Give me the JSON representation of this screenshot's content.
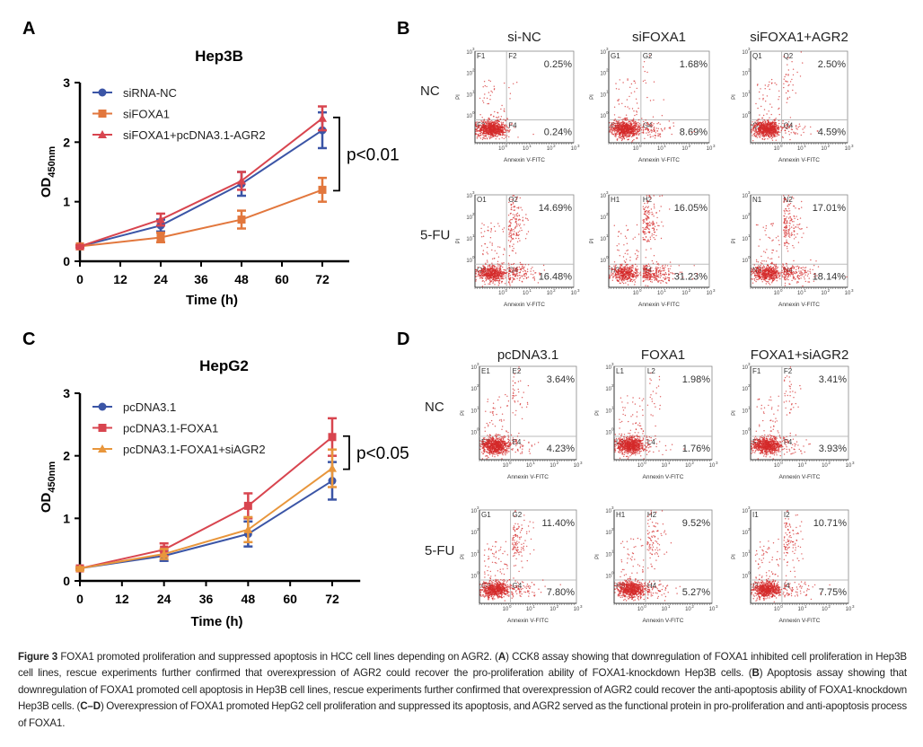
{
  "panel_labels": [
    "A",
    "B",
    "C",
    "D"
  ],
  "chart_data": [
    {
      "panel": "A",
      "type": "line",
      "title": "Hep3B",
      "xlabel": "Time (h)",
      "ylabel": {
        "main": "OD",
        "sub": "450nm"
      },
      "x": [
        0,
        24,
        48,
        72
      ],
      "xticks": [
        0,
        12,
        24,
        36,
        48,
        60,
        72
      ],
      "yticks": [
        0,
        1,
        2,
        3
      ],
      "xlim": [
        0,
        80
      ],
      "ylim": [
        0,
        3
      ],
      "grid": false,
      "legend": "top-left",
      "series": [
        {
          "name": "siRNA-NC",
          "marker": "circle",
          "color": "#3b55a6",
          "values": [
            0.25,
            0.6,
            1.3,
            2.2
          ],
          "error": [
            0.02,
            0.1,
            0.2,
            0.3
          ]
        },
        {
          "name": "siFOXA1",
          "marker": "square",
          "color": "#e2773d",
          "values": [
            0.25,
            0.4,
            0.7,
            1.2
          ],
          "error": [
            0.02,
            0.08,
            0.15,
            0.2
          ]
        },
        {
          "name": "siFOXA1+pcDNA3.1-AGR2",
          "marker": "triangle",
          "color": "#d8454f",
          "values": [
            0.25,
            0.7,
            1.35,
            2.4
          ],
          "error": [
            0.02,
            0.1,
            0.15,
            0.2
          ]
        }
      ],
      "annotation": {
        "text": "p<0.01",
        "between": [
          2,
          1
        ],
        "at_x": 72
      }
    },
    {
      "panel": "C",
      "type": "line",
      "title": "HepG2",
      "xlabel": "Time (h)",
      "ylabel": {
        "main": "OD",
        "sub": "450nm"
      },
      "x": [
        0,
        24,
        48,
        72
      ],
      "xticks": [
        0,
        12,
        24,
        36,
        48,
        60,
        72
      ],
      "yticks": [
        0,
        1,
        2,
        3
      ],
      "xlim": [
        0,
        80
      ],
      "ylim": [
        0,
        3
      ],
      "grid": false,
      "legend": "top-left",
      "series": [
        {
          "name": "pcDNA3.1",
          "marker": "circle",
          "color": "#3b55a6",
          "values": [
            0.2,
            0.4,
            0.75,
            1.6
          ],
          "error": [
            0.02,
            0.08,
            0.2,
            0.3
          ]
        },
        {
          "name": "pcDNA3.1-FOXA1",
          "marker": "square",
          "color": "#d8454f",
          "values": [
            0.2,
            0.5,
            1.2,
            2.3
          ],
          "error": [
            0.02,
            0.1,
            0.2,
            0.3
          ]
        },
        {
          "name": "pcDNA3.1-FOXA1+siAGR2",
          "marker": "triangle",
          "color": "#e8963c",
          "values": [
            0.2,
            0.43,
            0.82,
            1.8
          ],
          "error": [
            0.02,
            0.08,
            0.2,
            0.3
          ]
        }
      ],
      "annotation": {
        "text": "p<0.05",
        "between": [
          1,
          2
        ],
        "at_x": 72
      }
    }
  ],
  "flow_panels": [
    {
      "panel": "B",
      "columns": [
        "si-NC",
        "siFOXA1",
        "siFOXA1+AGR2"
      ],
      "rows": [
        "NC",
        "5-FU"
      ],
      "xlabel": "Annexin V-FITC",
      "ylabel": "PI",
      "axis": "log",
      "ticks": [
        "10",
        "0",
        "1",
        "2",
        "3"
      ],
      "dot_color": "#d42a2a",
      "plots": [
        {
          "quadrants": [
            "F1",
            "F2",
            "F3",
            "F4"
          ],
          "upper_right": "0.25%",
          "lower_right": "0.24%"
        },
        {
          "quadrants": [
            "G1",
            "G2",
            "G3",
            "G4"
          ],
          "upper_right": "1.68%",
          "lower_right": "8.69%"
        },
        {
          "quadrants": [
            "Q1",
            "Q2",
            "Q3",
            "Q4"
          ],
          "upper_right": "2.50%",
          "lower_right": "4.59%"
        },
        {
          "quadrants": [
            "O1",
            "O2",
            "O3",
            "O4"
          ],
          "upper_right": "14.69%",
          "lower_right": "16.48%"
        },
        {
          "quadrants": [
            "H1",
            "H2",
            "H3",
            "H4"
          ],
          "upper_right": "16.05%",
          "lower_right": "31.23%"
        },
        {
          "quadrants": [
            "N1",
            "N2",
            "N3",
            "N4"
          ],
          "upper_right": "17.01%",
          "lower_right": "18.14%"
        }
      ]
    },
    {
      "panel": "D",
      "columns": [
        "pcDNA3.1",
        "FOXA1",
        "FOXA1+siAGR2"
      ],
      "rows": [
        "NC",
        "5-FU"
      ],
      "xlabel": "Annexin V-FITC",
      "ylabel": "PI",
      "axis": "log",
      "ticks": [
        "10",
        "0",
        "1",
        "2",
        "3"
      ],
      "dot_color": "#d42a2a",
      "plots": [
        {
          "quadrants": [
            "E1",
            "E2",
            "E3",
            "E4"
          ],
          "upper_right": "3.64%",
          "lower_right": "4.23%"
        },
        {
          "quadrants": [
            "L1",
            "L2",
            "L3",
            "L4"
          ],
          "upper_right": "1.98%",
          "lower_right": "1.76%"
        },
        {
          "quadrants": [
            "F1",
            "F2",
            "F3",
            "F4"
          ],
          "upper_right": "3.41%",
          "lower_right": "3.93%"
        },
        {
          "quadrants": [
            "G1",
            "G2",
            "G3",
            "G4"
          ],
          "upper_right": "11.40%",
          "lower_right": "7.80%"
        },
        {
          "quadrants": [
            "H1",
            "H2",
            "H3",
            "H4"
          ],
          "upper_right": "9.52%",
          "lower_right": "5.27%"
        },
        {
          "quadrants": [
            "I1",
            "I2",
            "I3",
            "I4"
          ],
          "upper_right": "10.71%",
          "lower_right": "7.75%"
        }
      ]
    }
  ],
  "caption": {
    "figure_label": "Figure 3",
    "segments": [
      {
        "bold": false,
        "text": " FOXA1 promoted proliferation and suppressed apoptosis in HCC cell lines depending on AGR2. ("
      },
      {
        "bold": true,
        "text": "A"
      },
      {
        "bold": false,
        "text": ") CCK8 assay showing that downregulation of FOXA1 inhibited cell proliferation in Hep3B cell lines, rescue experiments further confirmed that overexpression of AGR2 could recover the pro-proliferation ability of FOXA1-knockdown Hep3B cells. ("
      },
      {
        "bold": true,
        "text": "B"
      },
      {
        "bold": false,
        "text": ") Apoptosis assay showing that downregulation of FOXA1 promoted cell apoptosis in Hep3B cell lines, rescue experiments further confirmed that overexpression of AGR2 could recover the anti-apoptosis ability of FOXA1-knockdown Hep3B cells. ("
      },
      {
        "bold": true,
        "text": "C–D"
      },
      {
        "bold": false,
        "text": ") Overexpression of FOXA1 promoted HepG2 cell proliferation and suppressed its apoptosis, and AGR2 served as the functional protein in pro-proliferation and anti-apoptosis process of FOXA1."
      }
    ]
  }
}
